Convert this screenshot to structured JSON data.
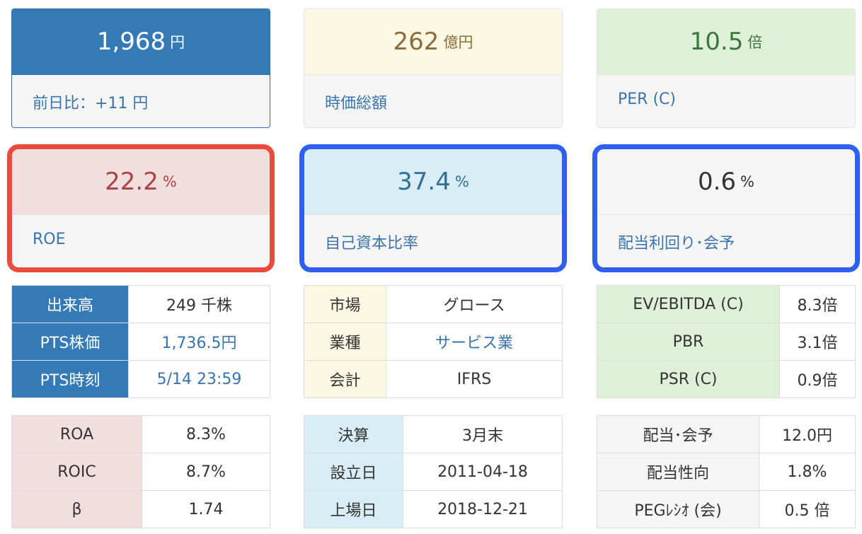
{
  "cards": {
    "price": {
      "value": "1,968",
      "unit": "円",
      "label": "前日比：+11 円"
    },
    "market_cap": {
      "value": "262",
      "unit": "億円",
      "label": "時価総額"
    },
    "per": {
      "value": "10.5",
      "unit": "倍",
      "label": "PER (C)"
    },
    "roe": {
      "value": "22.2",
      "unit": "%",
      "label": "ROE"
    },
    "equity_ratio": {
      "value": "37.4",
      "unit": "%",
      "label": "自己資本比率"
    },
    "dividend_yield": {
      "value": "0.6",
      "unit": "%",
      "label": "配当利回り･会予"
    }
  },
  "tables": {
    "trading": [
      {
        "k": "出来高",
        "v": "249 千株"
      },
      {
        "k": "PTS株価",
        "v": "1,736.5円"
      },
      {
        "k": "PTS時刻",
        "v": "5/14 23:59"
      }
    ],
    "company": [
      {
        "k": "市場",
        "v": "グロース"
      },
      {
        "k": "業種",
        "v": "サービス業"
      },
      {
        "k": "会計",
        "v": "IFRS"
      }
    ],
    "valuation": [
      {
        "k": "EV/EBITDA (C)",
        "v": "8.3倍"
      },
      {
        "k": "PBR",
        "v": "3.1倍"
      },
      {
        "k": "PSR (C)",
        "v": "0.9倍"
      }
    ],
    "returns": [
      {
        "k": "ROA",
        "v": "8.3%"
      },
      {
        "k": "ROIC",
        "v": "8.7%"
      },
      {
        "k": "β",
        "v": "1.74"
      }
    ],
    "dates": [
      {
        "k": "決算",
        "v": "3月末"
      },
      {
        "k": "設立日",
        "v": "2011-04-18"
      },
      {
        "k": "上場日",
        "v": "2018-12-21"
      }
    ],
    "dividend": [
      {
        "k": "配当･会予",
        "v": "12.0円"
      },
      {
        "k": "配当性向",
        "v": "1.8%"
      },
      {
        "k": "PEGﾚｼｵ (会)",
        "v": "0.5 倍"
      }
    ]
  },
  "colors": {
    "primary_blue": "#337ab7",
    "highlight_red": "#e94b3c",
    "highlight_blue": "#2f5ff0",
    "link_blue": "#3a73ad"
  }
}
